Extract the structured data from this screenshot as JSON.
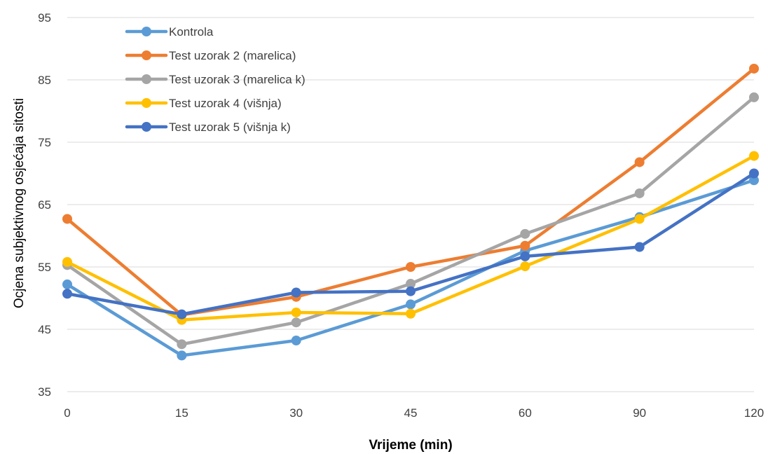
{
  "chart_data": {
    "type": "line",
    "title": "",
    "xlabel": "Vrijeme (min)",
    "ylabel": "Ocjena subjektivnog osjećaja sitosti",
    "categories": [
      "0",
      "15",
      "30",
      "45",
      "60",
      "90",
      "120"
    ],
    "ylim": [
      35,
      95
    ],
    "yticks": [
      35,
      45,
      55,
      65,
      75,
      85,
      95
    ],
    "grid": "horizontal",
    "legend": "top-left",
    "series": [
      {
        "name": "Kontrola",
        "color": "#5b9bd5",
        "values": [
          52.2,
          40.8,
          43.2,
          49.0,
          57.6,
          63.0,
          68.9
        ]
      },
      {
        "name": "Test uzorak 2 (marelica)",
        "color": "#ed7d31",
        "values": [
          62.7,
          47.3,
          50.2,
          55.0,
          58.4,
          71.8,
          86.8
        ]
      },
      {
        "name": "Test uzorak 3 (marelica k)",
        "color": "#a5a5a5",
        "values": [
          55.3,
          42.6,
          46.1,
          52.3,
          60.3,
          66.8,
          82.2
        ]
      },
      {
        "name": "Test uzorak 4 (višnja)",
        "color": "#ffc000",
        "values": [
          55.8,
          46.5,
          47.7,
          47.5,
          55.1,
          62.7,
          72.8
        ]
      },
      {
        "name": "Test uzorak 5 (višnja k)",
        "color": "#4472c4",
        "values": [
          50.7,
          47.4,
          50.9,
          51.1,
          56.7,
          58.2,
          70.0
        ]
      }
    ]
  }
}
